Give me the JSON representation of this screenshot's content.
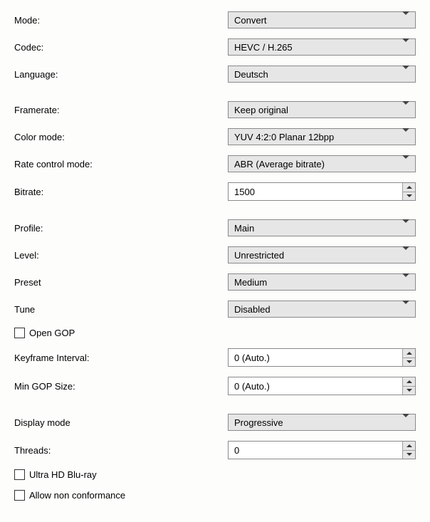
{
  "colors": {
    "background": "#fdfdfc",
    "combo_bg": "#e6e6e6",
    "border": "#8a8a8a",
    "spin_border": "#a0a0a0",
    "text": "#000000"
  },
  "typography": {
    "font_family": "Segoe UI",
    "font_size_pt": 10
  },
  "fields": {
    "mode": {
      "label": "Mode:",
      "value": "Convert",
      "type": "combo"
    },
    "codec": {
      "label": "Codec:",
      "value": "HEVC / H.265",
      "type": "combo"
    },
    "language": {
      "label": "Language:",
      "value": "Deutsch",
      "type": "combo"
    },
    "framerate": {
      "label": "Framerate:",
      "value": "Keep original",
      "type": "combo"
    },
    "colormode": {
      "label": "Color mode:",
      "value": "YUV 4:2:0 Planar 12bpp",
      "type": "combo"
    },
    "ratectrl": {
      "label": "Rate control mode:",
      "value": "ABR (Average bitrate)",
      "type": "combo"
    },
    "bitrate": {
      "label": "Bitrate:",
      "value": "1500",
      "type": "spin"
    },
    "profile": {
      "label": "Profile:",
      "value": "Main",
      "type": "combo"
    },
    "level": {
      "label": "Level:",
      "value": "Unrestricted",
      "type": "combo"
    },
    "preset": {
      "label": "Preset",
      "value": "Medium",
      "type": "combo"
    },
    "tune": {
      "label": "Tune",
      "value": "Disabled",
      "type": "combo"
    },
    "opengop": {
      "label": "Open GOP",
      "checked": false,
      "type": "check"
    },
    "keyframe": {
      "label": "Keyframe Interval:",
      "value": "0 (Auto.)",
      "type": "spin"
    },
    "mingop": {
      "label": "Min GOP Size:",
      "value": "0 (Auto.)",
      "type": "spin"
    },
    "display": {
      "label": "Display mode",
      "value": "Progressive",
      "type": "combo"
    },
    "threads": {
      "label": "Threads:",
      "value": "0",
      "type": "spin"
    },
    "uhdbr": {
      "label": "Ultra HD Blu-ray",
      "checked": false,
      "type": "check"
    },
    "allownc": {
      "label": "Allow non conformance",
      "checked": false,
      "type": "check"
    }
  }
}
